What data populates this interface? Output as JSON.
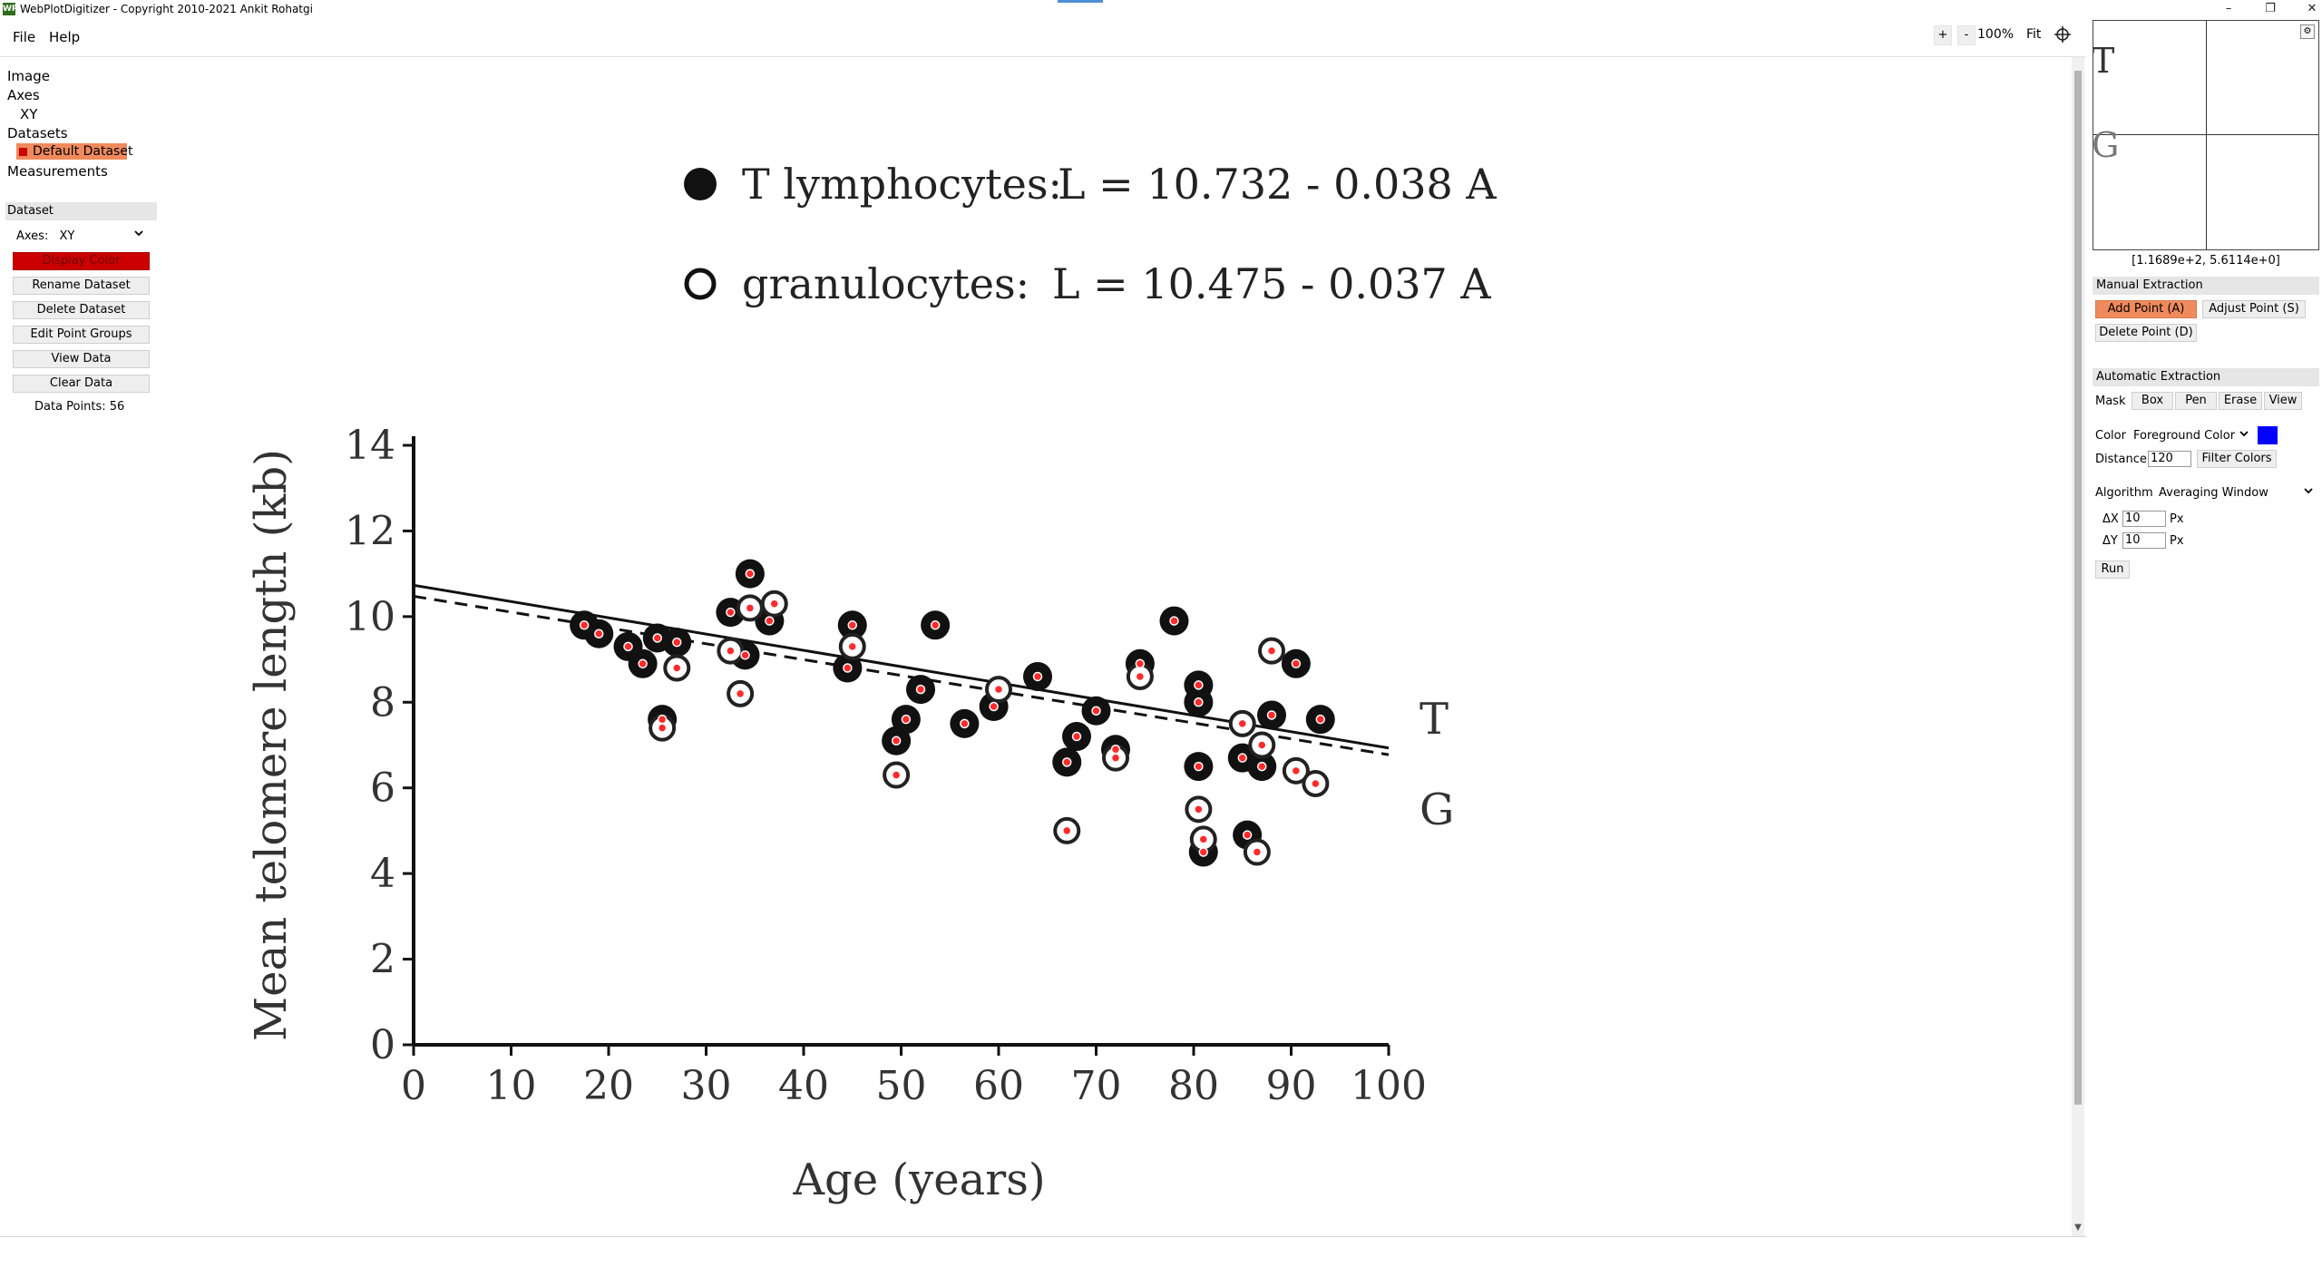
{
  "window": {
    "title": "WebPlotDigitizer - Copyright 2010-2021 Ankit Rohatgi",
    "app_icon": "WP",
    "controls": {
      "minimize": "–",
      "restore": "❐",
      "close": "✕"
    }
  },
  "menu": {
    "file": "File",
    "help": "Help"
  },
  "zoom_toolbar": {
    "zoom_in": "+",
    "zoom_out": "-",
    "zoom_level": "100%",
    "fit": "Fit",
    "crosshair_icon": "crosshair-icon"
  },
  "tree": {
    "image": "Image",
    "axes": "Axes",
    "xy": "XY",
    "datasets": "Datasets",
    "default_dataset": "Default Dataset",
    "measurements": "Measurements"
  },
  "dataset_panel": {
    "header": "Dataset",
    "axes_label": "Axes:",
    "axes_value": "XY",
    "display_color": "Display Color",
    "rename": "Rename Dataset",
    "delete": "Delete Dataset",
    "edit_groups": "Edit Point Groups",
    "view_data": "View Data",
    "clear_data": "Clear Data",
    "data_points": "Data Points: 56"
  },
  "right_panel": {
    "magnifier_coords": "[1.1689e+2, 5.6114e+0]",
    "magnifier_letters": [
      "T",
      "G"
    ],
    "manual_header": "Manual Extraction",
    "add_point": "Add Point (A)",
    "adjust_point": "Adjust Point (S)",
    "delete_point": "Delete Point (D)",
    "auto_header": "Automatic Extraction",
    "mask_label": "Mask",
    "mask_box": "Box",
    "mask_pen": "Pen",
    "mask_erase": "Erase",
    "mask_view": "View",
    "color_label": "Color",
    "color_value": "Foreground Color",
    "foreground_color": "#0000ff",
    "distance_label": "Distance",
    "distance_value": "120",
    "filter_colors": "Filter Colors",
    "algorithm_label": "Algorithm",
    "algorithm_value": "Averaging Window",
    "dx_label": "ΔX",
    "dx_value": "10",
    "dy_label": "ΔY",
    "dy_value": "10",
    "px_unit": "Px",
    "run": "Run"
  },
  "chart_data": {
    "type": "scatter",
    "legend": [
      {
        "marker": "filled",
        "label": "T lymphocytes:",
        "equation": "L = 10.732 - 0.038 A"
      },
      {
        "marker": "open",
        "label": "granulocytes:",
        "equation": "L = 10.475 - 0.037 A"
      }
    ],
    "xlabel": "Age (years)",
    "ylabel": "Mean telomere length (kb)",
    "xlim": [
      0,
      100
    ],
    "ylim": [
      0,
      14
    ],
    "xticks": [
      "0",
      "10",
      "20",
      "30",
      "40",
      "50",
      "60",
      "70",
      "80",
      "90",
      "100"
    ],
    "yticks": [
      "0",
      "2",
      "4",
      "6",
      "8",
      "10",
      "12",
      "14"
    ],
    "line_labels": [
      "T",
      "G"
    ],
    "lines": [
      {
        "name": "T",
        "style": "solid",
        "intercept": 10.732,
        "slope": -0.038
      },
      {
        "name": "G",
        "style": "dashed",
        "intercept": 10.475,
        "slope": -0.037
      }
    ],
    "series": [
      {
        "name": "T lymphocytes",
        "marker": "filled",
        "x": [
          17.5,
          19,
          22,
          23.5,
          25,
          25.5,
          27,
          32.5,
          34,
          34.5,
          36.5,
          44.5,
          45,
          49.5,
          50.5,
          52,
          53.5,
          56.5,
          59.5,
          64,
          67,
          68,
          70,
          72,
          74.5,
          78,
          80.5,
          80.5,
          81,
          80.5,
          85,
          85.5,
          87,
          88,
          90.5,
          93
        ],
        "y": [
          9.8,
          9.6,
          9.3,
          8.9,
          9.5,
          7.6,
          9.4,
          10.1,
          9.1,
          11.0,
          9.9,
          8.8,
          9.8,
          7.1,
          7.6,
          8.3,
          9.8,
          7.5,
          7.9,
          8.6,
          6.6,
          7.2,
          7.8,
          6.9,
          8.9,
          9.9,
          8.4,
          8.0,
          4.5,
          6.5,
          6.7,
          4.9,
          6.5,
          7.7,
          8.9,
          7.6
        ]
      },
      {
        "name": "granulocytes",
        "marker": "open",
        "x": [
          25.5,
          27,
          32.5,
          33.5,
          34.5,
          37,
          45,
          49.5,
          60,
          67,
          72,
          74.5,
          81,
          80.5,
          85,
          87,
          88,
          90.5,
          92.5,
          86.5
        ],
        "y": [
          7.4,
          8.8,
          9.2,
          8.2,
          10.2,
          10.3,
          9.3,
          6.3,
          8.3,
          5.0,
          6.7,
          8.6,
          4.8,
          5.5,
          7.5,
          7.0,
          9.2,
          6.4,
          6.1,
          4.5
        ]
      }
    ]
  }
}
